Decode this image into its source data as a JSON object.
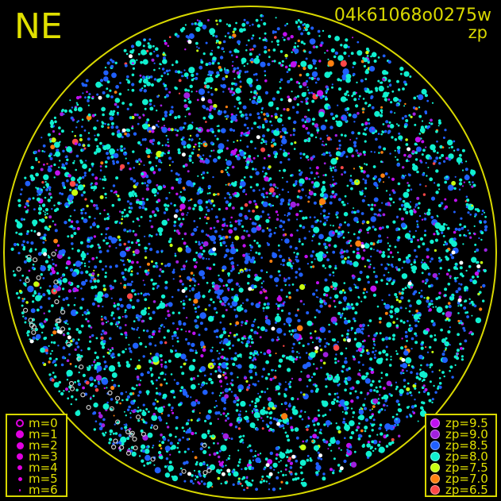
{
  "header": {
    "direction_label": "NE",
    "frame_id": "04k61068o0275w",
    "mode": "zp"
  },
  "colors": {
    "horizon_circle": "#d8d800",
    "text": "#e0e000",
    "background": "#000000"
  },
  "magnitude_legend": {
    "items": [
      {
        "label": "m=0",
        "symbol": "open-circle"
      },
      {
        "label": "m=1",
        "symbol": "dot"
      },
      {
        "label": "m=2",
        "symbol": "dot"
      },
      {
        "label": "m=3",
        "symbol": "dot"
      },
      {
        "label": "m=4",
        "symbol": "dot"
      },
      {
        "label": "m=5",
        "symbol": "dot"
      },
      {
        "label": "m=6",
        "symbol": "dot"
      }
    ],
    "color": "#e000e0"
  },
  "zp_legend": {
    "items": [
      {
        "label": "zp=9.5",
        "color": "#c010f0"
      },
      {
        "label": "zp=9.0",
        "color": "#a020e0"
      },
      {
        "label": "zp=8.5",
        "color": "#2060ff"
      },
      {
        "label": "zp=8.0",
        "color": "#10f0d0"
      },
      {
        "label": "zp=7.5",
        "color": "#c8ff10"
      },
      {
        "label": "zp=7.0",
        "color": "#ff8010"
      },
      {
        "label": "zp=6.5",
        "color": "#ff4848"
      }
    ]
  }
}
